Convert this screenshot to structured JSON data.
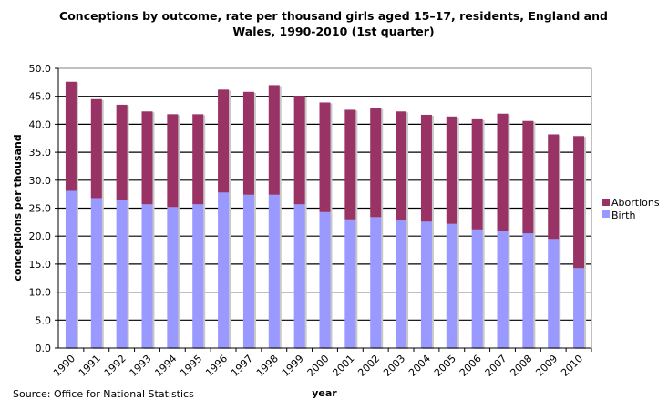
{
  "chart_data": {
    "type": "bar",
    "stacked": true,
    "title_lines": [
      "Conceptions by outcome, rate per thousand girls aged 15–17, residents,  England and",
      "Wales, 1990-2010 (1st quarter)"
    ],
    "xlabel": "year",
    "ylabel": "conceptions per thousand",
    "ylim": [
      0,
      50
    ],
    "ytick_step": 5,
    "yticks": [
      "0.0",
      "5.0",
      "10.0",
      "15.0",
      "20.0",
      "25.0",
      "30.0",
      "35.0",
      "40.0",
      "45.0",
      "50.0"
    ],
    "grid": true,
    "legend_position": "right",
    "categories": [
      "1990",
      "1991",
      "1992",
      "1993",
      "1994",
      "1995",
      "1996",
      "1997",
      "1998",
      "1999",
      "2000",
      "2001",
      "2002",
      "2003",
      "2004",
      "2005",
      "2006",
      "2007",
      "2008",
      "2009",
      "2010"
    ],
    "series": [
      {
        "name": "Birth",
        "color": "#9999ff",
        "values": [
          28.1,
          26.8,
          26.5,
          25.7,
          25.2,
          25.7,
          27.8,
          27.4,
          27.4,
          25.7,
          24.3,
          23.0,
          23.4,
          22.9,
          22.6,
          22.2,
          21.2,
          21.0,
          20.5,
          19.5,
          14.3
        ]
      },
      {
        "name": "Abortions",
        "color": "#993366",
        "values": [
          19.5,
          17.7,
          17.0,
          16.6,
          16.6,
          16.1,
          18.4,
          18.4,
          19.6,
          19.4,
          19.6,
          19.6,
          19.5,
          19.4,
          19.1,
          19.2,
          19.7,
          20.9,
          20.1,
          18.7,
          23.6
        ]
      }
    ],
    "legend": [
      "Abortions",
      "Birth"
    ],
    "source": "Source: Office for National Statistics"
  }
}
